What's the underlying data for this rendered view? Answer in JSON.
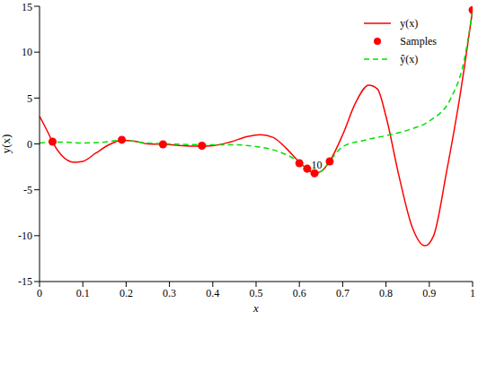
{
  "chart_data": {
    "type": "line",
    "x_label": "x",
    "y_label": "y(x)",
    "xlim": [
      0,
      1
    ],
    "ylim": [
      -15,
      15
    ],
    "xticks": [
      0,
      0.1,
      0.2,
      0.3,
      0.4,
      0.5,
      0.6,
      0.7,
      0.8,
      0.9,
      1
    ],
    "yticks": [
      -15,
      -10,
      -5,
      0,
      5,
      10,
      15
    ],
    "grid": false,
    "legend": "top right",
    "annotations": [
      {
        "text": "10",
        "x": 0.64,
        "y": -2.3
      }
    ],
    "series": [
      {
        "name": "y(x)",
        "type": "line",
        "color": "#ff0000",
        "line_style": "solid",
        "x": [
          0,
          0.02,
          0.03,
          0.05,
          0.08,
          0.1,
          0.13,
          0.16,
          0.19,
          0.22,
          0.25,
          0.29,
          0.33,
          0.37,
          0.4,
          0.44,
          0.48,
          0.51,
          0.54,
          0.57,
          0.6,
          0.62,
          0.635,
          0.65,
          0.67,
          0.7,
          0.73,
          0.76,
          0.78,
          0.8,
          0.83,
          0.86,
          0.89,
          0.91,
          0.94,
          0.97,
          1
        ],
        "values": [
          3.0,
          1.2,
          0.2,
          -1.2,
          -2.0,
          -1.9,
          -1.0,
          -0.1,
          0.4,
          0.3,
          0.0,
          -0.05,
          -0.2,
          -0.25,
          -0.2,
          0.2,
          0.8,
          1.0,
          0.7,
          -0.5,
          -2.0,
          -2.8,
          -3.2,
          -3.0,
          -1.9,
          1.0,
          4.5,
          6.4,
          6.0,
          3.0,
          -3.5,
          -9.0,
          -11.1,
          -10.0,
          -3.0,
          5.0,
          14.6
        ]
      },
      {
        "name": "Samples",
        "type": "scatter",
        "color": "#ff0000",
        "marker": "circle",
        "x": [
          0.03,
          0.19,
          0.285,
          0.375,
          0.6,
          0.618,
          0.635,
          0.67,
          1.0
        ],
        "values": [
          0.25,
          0.45,
          -0.05,
          -0.2,
          -2.1,
          -2.7,
          -3.2,
          -1.9,
          14.6
        ]
      },
      {
        "name": "ŷ(x)",
        "type": "line",
        "color": "#00e000",
        "line_style": "dashed",
        "x": [
          0,
          0.05,
          0.1,
          0.15,
          0.19,
          0.25,
          0.3,
          0.4,
          0.45,
          0.5,
          0.55,
          0.6,
          0.62,
          0.635,
          0.65,
          0.67,
          0.7,
          0.75,
          0.8,
          0.85,
          0.9,
          0.95,
          0.98,
          1
        ],
        "values": [
          0.1,
          0.2,
          0.1,
          0.2,
          0.4,
          0.1,
          0.0,
          -0.1,
          -0.1,
          -0.3,
          -0.8,
          -2.0,
          -2.8,
          -3.2,
          -3.0,
          -1.9,
          -0.3,
          0.4,
          0.9,
          1.5,
          2.5,
          5.0,
          9.0,
          14.6
        ]
      }
    ]
  }
}
